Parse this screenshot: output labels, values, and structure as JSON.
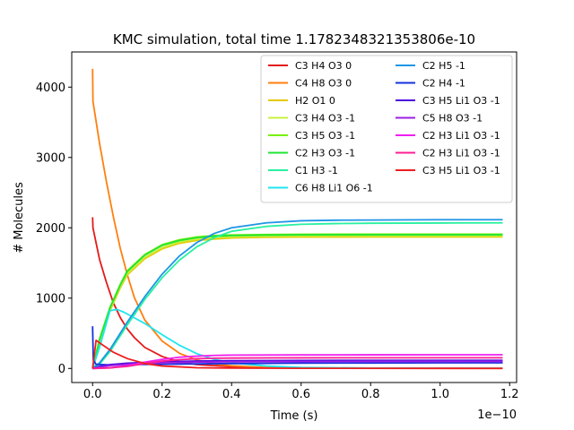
{
  "chart_data": {
    "type": "line",
    "title": "KMC simulation, total time 1.1782348321353806e-10",
    "xlabel": "Time (s)",
    "ylabel": "# Molecules",
    "x_offset_label": "1e−10",
    "x_scale": 1e-10,
    "xlim": [
      -0.06,
      1.22
    ],
    "ylim": [
      -200,
      4500
    ],
    "xticks": [
      0.0,
      0.2,
      0.4,
      0.6,
      0.8,
      1.0,
      1.2
    ],
    "xtick_labels": [
      "0.0",
      "0.2",
      "0.4",
      "0.6",
      "0.8",
      "1.0",
      "1.2"
    ],
    "yticks": [
      0,
      1000,
      2000,
      3000,
      4000
    ],
    "ytick_labels": [
      "0",
      "1000",
      "2000",
      "3000",
      "4000"
    ],
    "grid": false,
    "legend_position": "top-right",
    "legend_columns": 2,
    "series": [
      {
        "name": "C3 H4 O3 0",
        "color": "#e41a1a",
        "points": [
          [
            0,
            2150
          ],
          [
            0.001,
            2000
          ],
          [
            0.02,
            1550
          ],
          [
            0.04,
            1220
          ],
          [
            0.06,
            930
          ],
          [
            0.08,
            720
          ],
          [
            0.1,
            560
          ],
          [
            0.12,
            440
          ],
          [
            0.15,
            300
          ],
          [
            0.2,
            170
          ],
          [
            0.25,
            95
          ],
          [
            0.3,
            55
          ],
          [
            0.4,
            25
          ],
          [
            0.5,
            12
          ],
          [
            0.6,
            6
          ],
          [
            0.8,
            3
          ],
          [
            1.18,
            2
          ]
        ]
      },
      {
        "name": "C4 H8 O3 0",
        "color": "#ff7f0e",
        "points": [
          [
            0,
            4260
          ],
          [
            0.001,
            3800
          ],
          [
            0.02,
            3200
          ],
          [
            0.04,
            2650
          ],
          [
            0.06,
            2150
          ],
          [
            0.08,
            1700
          ],
          [
            0.1,
            1330
          ],
          [
            0.12,
            1010
          ],
          [
            0.15,
            690
          ],
          [
            0.2,
            390
          ],
          [
            0.25,
            215
          ],
          [
            0.3,
            120
          ],
          [
            0.35,
            65
          ],
          [
            0.4,
            38
          ],
          [
            0.5,
            15
          ],
          [
            0.6,
            7
          ],
          [
            0.8,
            3
          ],
          [
            1.18,
            1
          ]
        ]
      },
      {
        "name": "H2 O1 0",
        "color": "#e6c800",
        "points": [
          [
            0,
            0
          ],
          [
            0.02,
            390
          ],
          [
            0.05,
            820
          ],
          [
            0.08,
            1150
          ],
          [
            0.1,
            1330
          ],
          [
            0.15,
            1560
          ],
          [
            0.2,
            1700
          ],
          [
            0.25,
            1780
          ],
          [
            0.3,
            1820
          ],
          [
            0.35,
            1840
          ],
          [
            0.4,
            1855
          ],
          [
            0.5,
            1865
          ],
          [
            0.6,
            1868
          ],
          [
            0.8,
            1870
          ],
          [
            1.0,
            1870
          ],
          [
            1.18,
            1870
          ]
        ]
      },
      {
        "name": "C3 H4 O3 -1",
        "color": "#c8f03c",
        "points": [
          [
            0,
            0
          ],
          [
            0.02,
            400
          ],
          [
            0.05,
            840
          ],
          [
            0.08,
            1170
          ],
          [
            0.1,
            1350
          ],
          [
            0.15,
            1580
          ],
          [
            0.2,
            1720
          ],
          [
            0.25,
            1800
          ],
          [
            0.3,
            1840
          ],
          [
            0.35,
            1860
          ],
          [
            0.4,
            1870
          ],
          [
            0.5,
            1880
          ],
          [
            0.6,
            1884
          ],
          [
            0.8,
            1885
          ],
          [
            1.0,
            1885
          ],
          [
            1.18,
            1885
          ]
        ]
      },
      {
        "name": "C3 H5 O3 -1",
        "color": "#78f000",
        "points": [
          [
            0,
            0
          ],
          [
            0.02,
            420
          ],
          [
            0.05,
            870
          ],
          [
            0.08,
            1200
          ],
          [
            0.1,
            1390
          ],
          [
            0.15,
            1620
          ],
          [
            0.2,
            1760
          ],
          [
            0.25,
            1830
          ],
          [
            0.3,
            1870
          ],
          [
            0.35,
            1890
          ],
          [
            0.4,
            1898
          ],
          [
            0.5,
            1905
          ],
          [
            0.6,
            1908
          ],
          [
            0.8,
            1910
          ],
          [
            1.0,
            1910
          ],
          [
            1.18,
            1910
          ]
        ]
      },
      {
        "name": "C2 H3 O3 -1",
        "color": "#1ee632",
        "points": [
          [
            0,
            0
          ],
          [
            0.02,
            410
          ],
          [
            0.05,
            860
          ],
          [
            0.08,
            1190
          ],
          [
            0.1,
            1380
          ],
          [
            0.15,
            1610
          ],
          [
            0.2,
            1750
          ],
          [
            0.25,
            1820
          ],
          [
            0.3,
            1860
          ],
          [
            0.35,
            1880
          ],
          [
            0.4,
            1890
          ],
          [
            0.5,
            1897
          ],
          [
            0.6,
            1900
          ],
          [
            0.8,
            1900
          ],
          [
            1.0,
            1900
          ],
          [
            1.18,
            1900
          ]
        ]
      },
      {
        "name": "C1 H3 -1",
        "color": "#28f0a0",
        "points": [
          [
            0,
            0
          ],
          [
            0.02,
            60
          ],
          [
            0.05,
            240
          ],
          [
            0.1,
            620
          ],
          [
            0.15,
            980
          ],
          [
            0.2,
            1290
          ],
          [
            0.25,
            1540
          ],
          [
            0.3,
            1730
          ],
          [
            0.35,
            1860
          ],
          [
            0.4,
            1950
          ],
          [
            0.5,
            2020
          ],
          [
            0.6,
            2050
          ],
          [
            0.7,
            2060
          ],
          [
            0.8,
            2065
          ],
          [
            1.0,
            2068
          ],
          [
            1.18,
            2070
          ]
        ]
      },
      {
        "name": "C6 H8 Li1 O6 -1",
        "color": "#1ee6f0",
        "points": [
          [
            0,
            0
          ],
          [
            0.02,
            300
          ],
          [
            0.05,
            820
          ],
          [
            0.07,
            840
          ],
          [
            0.09,
            800
          ],
          [
            0.12,
            720
          ],
          [
            0.15,
            640
          ],
          [
            0.2,
            480
          ],
          [
            0.25,
            330
          ],
          [
            0.3,
            210
          ],
          [
            0.35,
            130
          ],
          [
            0.4,
            80
          ],
          [
            0.5,
            35
          ],
          [
            0.6,
            15
          ],
          [
            0.8,
            5
          ],
          [
            1.18,
            2
          ]
        ]
      },
      {
        "name": "C2 H5 -1",
        "color": "#1e96e6",
        "points": [
          [
            0,
            0
          ],
          [
            0.02,
            80
          ],
          [
            0.05,
            270
          ],
          [
            0.1,
            660
          ],
          [
            0.15,
            1020
          ],
          [
            0.2,
            1340
          ],
          [
            0.25,
            1600
          ],
          [
            0.3,
            1790
          ],
          [
            0.35,
            1920
          ],
          [
            0.4,
            2000
          ],
          [
            0.5,
            2070
          ],
          [
            0.6,
            2100
          ],
          [
            0.7,
            2108
          ],
          [
            0.8,
            2110
          ],
          [
            1.0,
            2115
          ],
          [
            1.18,
            2115
          ]
        ]
      },
      {
        "name": "C2 H4 -1",
        "color": "#1432dc",
        "points": [
          [
            0,
            600
          ],
          [
            0.002,
            120
          ],
          [
            0.01,
            60
          ],
          [
            0.05,
            50
          ],
          [
            0.1,
            55
          ],
          [
            0.2,
            60
          ],
          [
            0.4,
            70
          ],
          [
            0.6,
            75
          ],
          [
            0.8,
            78
          ],
          [
            1.0,
            80
          ],
          [
            1.18,
            80
          ]
        ]
      },
      {
        "name": "C3 H5 Li1 O3 -1",
        "color": "#4b0adc",
        "points": [
          [
            0,
            0
          ],
          [
            0.02,
            30
          ],
          [
            0.05,
            55
          ],
          [
            0.1,
            75
          ],
          [
            0.2,
            95
          ],
          [
            0.3,
            105
          ],
          [
            0.4,
            110
          ],
          [
            0.5,
            112
          ],
          [
            0.6,
            114
          ],
          [
            0.8,
            115
          ],
          [
            1.0,
            115
          ],
          [
            1.18,
            115
          ]
        ]
      },
      {
        "name": "C5 H8 O3 -1",
        "color": "#9b1ee6",
        "points": [
          [
            0,
            0
          ],
          [
            0.02,
            20
          ],
          [
            0.05,
            40
          ],
          [
            0.1,
            60
          ],
          [
            0.2,
            80
          ],
          [
            0.3,
            90
          ],
          [
            0.4,
            95
          ],
          [
            0.5,
            97
          ],
          [
            0.6,
            98
          ],
          [
            0.8,
            100
          ],
          [
            1.0,
            100
          ],
          [
            1.18,
            100
          ]
        ]
      },
      {
        "name": "C2 H3 Li1 O3 -1",
        "color": "#f01ef0",
        "points": [
          [
            0,
            0
          ],
          [
            0.05,
            10
          ],
          [
            0.1,
            40
          ],
          [
            0.15,
            90
          ],
          [
            0.2,
            130
          ],
          [
            0.25,
            160
          ],
          [
            0.3,
            175
          ],
          [
            0.35,
            185
          ],
          [
            0.4,
            190
          ],
          [
            0.5,
            192
          ],
          [
            0.6,
            193
          ],
          [
            0.8,
            194
          ],
          [
            1.0,
            195
          ],
          [
            1.18,
            195
          ]
        ]
      },
      {
        "name": "C2 H3 Li1 O3 -1",
        "color": "#ff1e96",
        "points": [
          [
            0,
            0
          ],
          [
            0.05,
            8
          ],
          [
            0.1,
            30
          ],
          [
            0.15,
            70
          ],
          [
            0.2,
            105
          ],
          [
            0.25,
            125
          ],
          [
            0.3,
            138
          ],
          [
            0.35,
            145
          ],
          [
            0.4,
            148
          ],
          [
            0.5,
            150
          ],
          [
            0.6,
            151
          ],
          [
            0.8,
            152
          ],
          [
            1.0,
            152
          ],
          [
            1.18,
            152
          ]
        ]
      },
      {
        "name": "C3 H5 Li1 O3 -1",
        "color": "#f01e1e",
        "points": [
          [
            0,
            0
          ],
          [
            0.01,
            400
          ],
          [
            0.03,
            330
          ],
          [
            0.06,
            230
          ],
          [
            0.1,
            140
          ],
          [
            0.15,
            70
          ],
          [
            0.2,
            35
          ],
          [
            0.3,
            10
          ],
          [
            0.4,
            5
          ],
          [
            0.6,
            2
          ],
          [
            1.18,
            1
          ]
        ]
      }
    ]
  }
}
